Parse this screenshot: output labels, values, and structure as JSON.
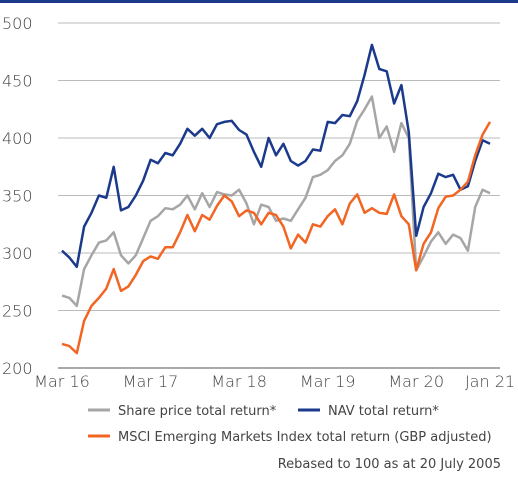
{
  "chart_data": {
    "type": "line",
    "categories": [
      "Mar 16",
      null,
      null,
      null,
      null,
      null,
      null,
      null,
      null,
      null,
      null,
      null,
      "Mar 17",
      null,
      null,
      null,
      null,
      null,
      null,
      null,
      null,
      null,
      null,
      null,
      "Mar 18",
      null,
      null,
      null,
      null,
      null,
      null,
      null,
      null,
      null,
      null,
      null,
      "Mar 19",
      null,
      null,
      null,
      null,
      null,
      null,
      null,
      null,
      null,
      null,
      null,
      "Mar 20",
      null,
      null,
      null,
      null,
      null,
      null,
      null,
      null,
      null,
      "Jan 21"
    ],
    "series": [
      {
        "name": "Share price total return*",
        "color": "#a6a6a6",
        "values": [
          263,
          261,
          254,
          286,
          298,
          309,
          311,
          318,
          298,
          291,
          298,
          313,
          328,
          332,
          339,
          338,
          342,
          350,
          338,
          352,
          340,
          353,
          351,
          350,
          355,
          343,
          325,
          342,
          340,
          328,
          330,
          328,
          338,
          348,
          366,
          368,
          372,
          380,
          385,
          395,
          415,
          425,
          436,
          400,
          410,
          388,
          413,
          400,
          285,
          297,
          310,
          318,
          308,
          316,
          313,
          302,
          340,
          355,
          352
        ]
      },
      {
        "name": "NAV total return*",
        "color": "#1b3a8c",
        "values": [
          302,
          296,
          288,
          323,
          335,
          350,
          348,
          375,
          337,
          340,
          350,
          363,
          381,
          378,
          387,
          385,
          395,
          408,
          402,
          408,
          400,
          412,
          414,
          415,
          407,
          403,
          388,
          375,
          400,
          385,
          395,
          380,
          376,
          380,
          390,
          389,
          414,
          413,
          420,
          419,
          432,
          455,
          481,
          460,
          458,
          430,
          446,
          405,
          315,
          340,
          352,
          369,
          366,
          368,
          355,
          358,
          380,
          398,
          395
        ]
      },
      {
        "name": "MSCI Emerging Markets Index total return (GBP adjusted)",
        "color": "#f26522",
        "values": [
          221,
          219,
          213,
          241,
          254,
          261,
          269,
          286,
          267,
          271,
          281,
          293,
          297,
          295,
          305,
          305,
          318,
          333,
          319,
          333,
          329,
          341,
          350,
          345,
          332,
          337,
          335,
          325,
          335,
          333,
          323,
          304,
          316,
          309,
          325,
          323,
          332,
          338,
          325,
          343,
          351,
          335,
          339,
          335,
          334,
          351,
          332,
          325,
          285,
          308,
          318,
          339,
          349,
          350,
          355,
          362,
          385,
          403,
          414
        ]
      }
    ],
    "ylim": [
      200,
      500
    ],
    "yticks": [
      200,
      250,
      300,
      350,
      400,
      450,
      500
    ],
    "grid": true,
    "note": "Rebased to 100 as at 20 July 2005"
  }
}
